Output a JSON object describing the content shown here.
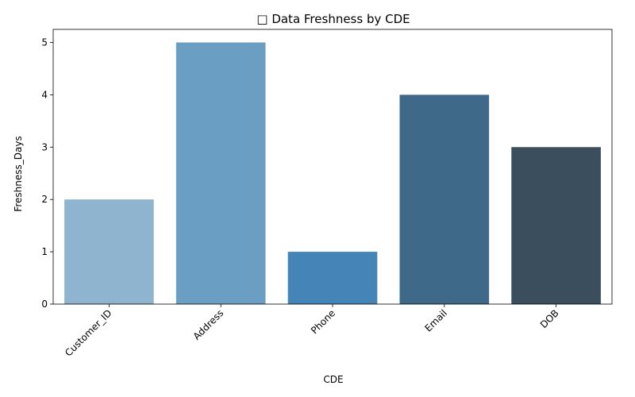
{
  "chart_data": {
    "type": "bar",
    "title": "□ Data Freshness by CDE",
    "xlabel": "CDE",
    "ylabel": "Freshness_Days",
    "categories": [
      "Customer_ID",
      "Address",
      "Phone",
      "Email",
      "DOB"
    ],
    "values": [
      2,
      5,
      1,
      4,
      3
    ],
    "colors": [
      "#8fb4d0",
      "#6a9ec2",
      "#4584b6",
      "#3f6988",
      "#3a4e5e"
    ],
    "ylim": [
      0,
      5.25
    ],
    "yticks": [
      0,
      1,
      2,
      3,
      4,
      5
    ],
    "grid": false,
    "xtick_rotation": 45
  }
}
